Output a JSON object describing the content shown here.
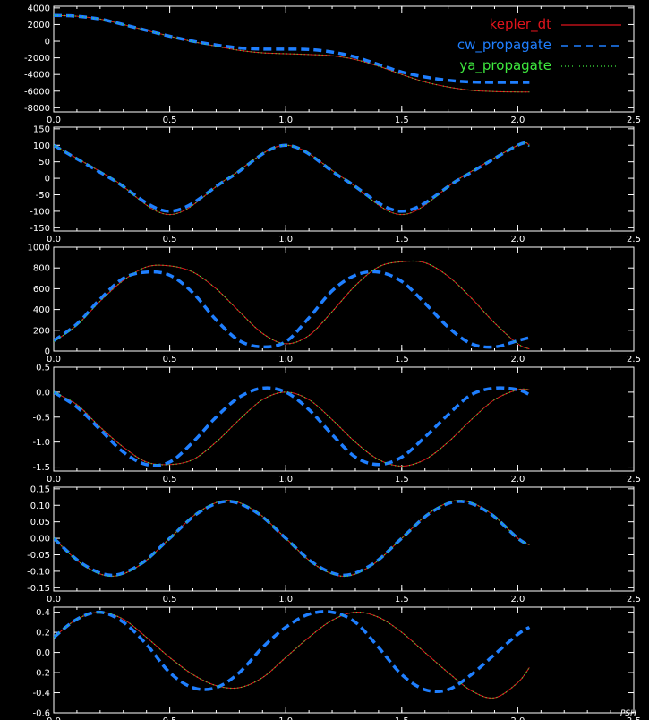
{
  "colors": {
    "background": "#000000",
    "axes": "#ffffff",
    "kepler_dt": "#e0141c",
    "cw_propagate": "#1f7fff",
    "ya_propagate": "#3ee83e"
  },
  "watermark": "PSH",
  "chart_data": [
    {
      "type": "line",
      "xlim": [
        0.0,
        2.5
      ],
      "ylim": [
        -8500,
        4200
      ],
      "x_ticks": [
        "0.0",
        "0.5",
        "1.0",
        "1.5",
        "2.0",
        "2.5"
      ],
      "y_ticks": [
        "4000",
        "2000",
        "0",
        "-2000",
        "-4000",
        "-6000",
        "-8000"
      ],
      "grid": false,
      "legend_position": "top-right",
      "legend": [
        {
          "name": "kepler_dt",
          "style": "solid"
        },
        {
          "name": "cw_propagate",
          "style": "dashed"
        },
        {
          "name": "ya_propagate",
          "style": "dotted"
        }
      ],
      "series": [
        {
          "name": "kepler_dt",
          "x": [
            0,
            0.1,
            0.2,
            0.3,
            0.4,
            0.5,
            0.6,
            0.7,
            0.8,
            0.9,
            1.0,
            1.1,
            1.2,
            1.3,
            1.4,
            1.5,
            1.6,
            1.7,
            1.8,
            1.9,
            2.0,
            2.05
          ],
          "y": [
            3100,
            3000,
            2650,
            2000,
            1300,
            600,
            -50,
            -600,
            -1100,
            -1400,
            -1500,
            -1600,
            -1750,
            -2200,
            -3000,
            -4000,
            -4900,
            -5500,
            -5900,
            -6050,
            -6100,
            -6100
          ]
        },
        {
          "name": "cw_propagate",
          "x": [
            0,
            0.1,
            0.2,
            0.3,
            0.4,
            0.5,
            0.6,
            0.7,
            0.8,
            0.9,
            1.0,
            1.1,
            1.2,
            1.3,
            1.4,
            1.5,
            1.6,
            1.7,
            1.8,
            1.9,
            2.0,
            2.05
          ],
          "y": [
            3100,
            3000,
            2650,
            2000,
            1300,
            600,
            0,
            -450,
            -800,
            -950,
            -950,
            -1000,
            -1300,
            -1900,
            -2800,
            -3700,
            -4300,
            -4700,
            -4900,
            -4950,
            -4950,
            -4950
          ]
        },
        {
          "name": "ya_propagate",
          "x": [
            0,
            0.1,
            0.2,
            0.3,
            0.4,
            0.5,
            0.6,
            0.7,
            0.8,
            0.9,
            1.0,
            1.1,
            1.2,
            1.3,
            1.4,
            1.5,
            1.6,
            1.7,
            1.8,
            1.9,
            2.0,
            2.05
          ],
          "y": [
            3100,
            3000,
            2650,
            2000,
            1300,
            600,
            -50,
            -600,
            -1100,
            -1400,
            -1500,
            -1600,
            -1750,
            -2200,
            -3000,
            -4000,
            -4900,
            -5500,
            -5900,
            -6050,
            -6100,
            -6100
          ]
        }
      ]
    },
    {
      "type": "line",
      "xlim": [
        0.0,
        2.5
      ],
      "ylim": [
        -160,
        155
      ],
      "x_ticks": [
        "0.0",
        "0.5",
        "1.0",
        "1.5",
        "2.0",
        "2.5"
      ],
      "y_ticks": [
        "150",
        "100",
        "50",
        "0",
        "-50",
        "-100",
        "-150"
      ],
      "grid": false,
      "series": [
        {
          "name": "kepler_dt",
          "x": [
            0,
            0.25,
            0.5,
            0.75,
            1.0,
            1.25,
            1.5,
            1.75,
            2.0,
            2.05
          ],
          "y": [
            100,
            0,
            -110,
            0,
            100,
            0,
            -110,
            0,
            100,
            100
          ]
        },
        {
          "name": "cw_propagate",
          "x": [
            0,
            0.25,
            0.5,
            0.75,
            1.0,
            1.25,
            1.5,
            1.75,
            2.0,
            2.05
          ],
          "y": [
            100,
            -2,
            -100,
            -2,
            100,
            -2,
            -100,
            -2,
            100,
            100
          ]
        },
        {
          "name": "ya_propagate",
          "x": [
            0,
            0.25,
            0.5,
            0.75,
            1.0,
            1.25,
            1.5,
            1.75,
            2.0,
            2.05
          ],
          "y": [
            100,
            0,
            -110,
            0,
            100,
            0,
            -110,
            0,
            100,
            100
          ]
        }
      ]
    },
    {
      "type": "line",
      "xlim": [
        0.0,
        2.5
      ],
      "ylim": [
        0,
        1000
      ],
      "x_ticks": [
        "0.0",
        "0.5",
        "1.0",
        "1.5",
        "2.0",
        "2.5"
      ],
      "y_ticks": [
        "1000",
        "800",
        "600",
        "400",
        "200",
        "0"
      ],
      "grid": false,
      "series": [
        {
          "name": "kepler_dt",
          "x": [
            0,
            0.1,
            0.2,
            0.3,
            0.4,
            0.5,
            0.6,
            0.7,
            0.8,
            0.9,
            1.0,
            1.1,
            1.2,
            1.3,
            1.4,
            1.5,
            1.6,
            1.7,
            1.8,
            1.9,
            2.0,
            2.05
          ],
          "y": [
            90,
            250,
            480,
            680,
            810,
            820,
            760,
            600,
            380,
            170,
            70,
            150,
            380,
            630,
            810,
            860,
            850,
            720,
            510,
            270,
            70,
            20
          ]
        },
        {
          "name": "cw_propagate",
          "x": [
            0,
            0.1,
            0.2,
            0.3,
            0.4,
            0.5,
            0.6,
            0.7,
            0.8,
            0.9,
            1.0,
            1.1,
            1.2,
            1.3,
            1.4,
            1.5,
            1.6,
            1.7,
            1.8,
            1.9,
            2.0,
            2.05
          ],
          "y": [
            100,
            260,
            500,
            700,
            760,
            730,
            560,
            300,
            100,
            40,
            90,
            320,
            580,
            730,
            760,
            670,
            460,
            230,
            70,
            40,
            100,
            130
          ]
        },
        {
          "name": "ya_propagate",
          "x": [
            0,
            0.1,
            0.2,
            0.3,
            0.4,
            0.5,
            0.6,
            0.7,
            0.8,
            0.9,
            1.0,
            1.1,
            1.2,
            1.3,
            1.4,
            1.5,
            1.6,
            1.7,
            1.8,
            1.9,
            2.0,
            2.05
          ],
          "y": [
            90,
            250,
            480,
            680,
            810,
            820,
            760,
            600,
            380,
            170,
            70,
            150,
            380,
            630,
            810,
            860,
            850,
            720,
            510,
            270,
            70,
            20
          ]
        }
      ]
    },
    {
      "type": "line",
      "xlim": [
        0.0,
        2.5
      ],
      "ylim": [
        -1.58,
        0.5
      ],
      "x_ticks": [
        "0.0",
        "0.5",
        "1.0",
        "1.5",
        "2.0",
        "2.5"
      ],
      "y_ticks": [
        "0.5",
        "0.0",
        "-0.5",
        "-1.0",
        "-1.5"
      ],
      "grid": false,
      "series": [
        {
          "name": "kepler_dt",
          "x": [
            0,
            0.1,
            0.2,
            0.3,
            0.4,
            0.5,
            0.6,
            0.7,
            0.8,
            0.9,
            1.0,
            1.1,
            1.2,
            1.3,
            1.4,
            1.5,
            1.6,
            1.7,
            1.8,
            1.9,
            2.0,
            2.05
          ],
          "y": [
            0.0,
            -0.25,
            -0.7,
            -1.1,
            -1.4,
            -1.45,
            -1.35,
            -1.0,
            -0.55,
            -0.15,
            0.0,
            -0.15,
            -0.55,
            -1.0,
            -1.35,
            -1.48,
            -1.35,
            -1.0,
            -0.55,
            -0.15,
            0.05,
            0.05
          ]
        },
        {
          "name": "cw_propagate",
          "x": [
            0,
            0.1,
            0.2,
            0.3,
            0.4,
            0.5,
            0.6,
            0.7,
            0.8,
            0.9,
            1.0,
            1.1,
            1.2,
            1.3,
            1.4,
            1.5,
            1.6,
            1.7,
            1.8,
            1.9,
            2.0,
            2.05
          ],
          "y": [
            0.0,
            -0.3,
            -0.75,
            -1.2,
            -1.45,
            -1.4,
            -1.0,
            -0.5,
            -0.1,
            0.08,
            0.0,
            -0.35,
            -0.85,
            -1.3,
            -1.45,
            -1.3,
            -0.9,
            -0.45,
            -0.05,
            0.08,
            0.05,
            -0.05
          ]
        },
        {
          "name": "ya_propagate",
          "x": [
            0,
            0.1,
            0.2,
            0.3,
            0.4,
            0.5,
            0.6,
            0.7,
            0.8,
            0.9,
            1.0,
            1.1,
            1.2,
            1.3,
            1.4,
            1.5,
            1.6,
            1.7,
            1.8,
            1.9,
            2.0,
            2.05
          ],
          "y": [
            0.0,
            -0.25,
            -0.7,
            -1.1,
            -1.4,
            -1.45,
            -1.35,
            -1.0,
            -0.55,
            -0.15,
            0.0,
            -0.15,
            -0.55,
            -1.0,
            -1.35,
            -1.48,
            -1.35,
            -1.0,
            -0.55,
            -0.15,
            0.05,
            0.05
          ]
        }
      ]
    },
    {
      "type": "line",
      "xlim": [
        0.0,
        2.5
      ],
      "ylim": [
        -0.16,
        0.155
      ],
      "x_ticks": [
        "0.0",
        "0.5",
        "1.0",
        "1.5",
        "2.0",
        "2.5"
      ],
      "y_ticks": [
        "0.15",
        "0.10",
        "0.05",
        "0.00",
        "-0.05",
        "-0.10",
        "-0.15"
      ],
      "grid": false,
      "series": [
        {
          "name": "kepler_dt",
          "x": [
            0,
            0.125,
            0.25,
            0.375,
            0.5,
            0.625,
            0.75,
            0.875,
            1.0,
            1.125,
            1.25,
            1.375,
            1.5,
            1.625,
            1.75,
            1.875,
            2.0,
            2.05
          ],
          "y": [
            0.0,
            -0.08,
            -0.115,
            -0.08,
            0.0,
            0.08,
            0.115,
            0.08,
            0.0,
            -0.08,
            -0.115,
            -0.08,
            0.0,
            0.08,
            0.115,
            0.08,
            0.0,
            -0.02
          ]
        },
        {
          "name": "cw_propagate",
          "x": [
            0,
            0.125,
            0.25,
            0.375,
            0.5,
            0.625,
            0.75,
            0.875,
            1.0,
            1.125,
            1.25,
            1.375,
            1.5,
            1.625,
            1.75,
            1.875,
            2.0,
            2.05
          ],
          "y": [
            0.0,
            -0.078,
            -0.112,
            -0.078,
            0.0,
            0.078,
            0.112,
            0.078,
            0.0,
            -0.078,
            -0.112,
            -0.078,
            0.0,
            0.078,
            0.112,
            0.078,
            0.0,
            -0.02
          ]
        },
        {
          "name": "ya_propagate",
          "x": [
            0,
            0.125,
            0.25,
            0.375,
            0.5,
            0.625,
            0.75,
            0.875,
            1.0,
            1.125,
            1.25,
            1.375,
            1.5,
            1.625,
            1.75,
            1.875,
            2.0,
            2.05
          ],
          "y": [
            0.0,
            -0.08,
            -0.115,
            -0.08,
            0.0,
            0.08,
            0.115,
            0.08,
            0.0,
            -0.08,
            -0.115,
            -0.08,
            0.0,
            0.08,
            0.115,
            0.08,
            0.0,
            -0.02
          ]
        }
      ]
    },
    {
      "type": "line",
      "xlim": [
        0.0,
        2.5
      ],
      "ylim": [
        -0.6,
        0.45
      ],
      "x_ticks": [
        "0.0",
        "0.5",
        "1.0",
        "1.5",
        "2.0",
        "2.5"
      ],
      "y_ticks": [
        "0.4",
        "0.2",
        "0.0",
        "-0.2",
        "-0.4",
        "-0.6"
      ],
      "grid": false,
      "series": [
        {
          "name": "kepler_dt",
          "x": [
            0,
            0.1,
            0.2,
            0.3,
            0.4,
            0.5,
            0.6,
            0.7,
            0.8,
            0.9,
            1.0,
            1.1,
            1.2,
            1.3,
            1.4,
            1.5,
            1.6,
            1.7,
            1.8,
            1.9,
            2.0,
            2.05
          ],
          "y": [
            0.15,
            0.33,
            0.4,
            0.33,
            0.15,
            -0.05,
            -0.22,
            -0.33,
            -0.35,
            -0.25,
            -0.05,
            0.15,
            0.32,
            0.4,
            0.35,
            0.2,
            0.0,
            -0.2,
            -0.38,
            -0.45,
            -0.3,
            -0.15
          ]
        },
        {
          "name": "cw_propagate",
          "x": [
            0,
            0.1,
            0.2,
            0.3,
            0.4,
            0.5,
            0.6,
            0.7,
            0.8,
            0.9,
            1.0,
            1.1,
            1.2,
            1.3,
            1.4,
            1.5,
            1.6,
            1.7,
            1.8,
            1.9,
            2.0,
            2.05
          ],
          "y": [
            0.15,
            0.33,
            0.4,
            0.3,
            0.08,
            -0.2,
            -0.35,
            -0.35,
            -0.2,
            0.05,
            0.25,
            0.38,
            0.4,
            0.3,
            0.05,
            -0.22,
            -0.37,
            -0.37,
            -0.22,
            -0.02,
            0.18,
            0.25
          ]
        },
        {
          "name": "ya_propagate",
          "x": [
            0,
            0.1,
            0.2,
            0.3,
            0.4,
            0.5,
            0.6,
            0.7,
            0.8,
            0.9,
            1.0,
            1.1,
            1.2,
            1.3,
            1.4,
            1.5,
            1.6,
            1.7,
            1.8,
            1.9,
            2.0,
            2.05
          ],
          "y": [
            0.15,
            0.33,
            0.4,
            0.33,
            0.15,
            -0.05,
            -0.22,
            -0.33,
            -0.35,
            -0.25,
            -0.05,
            0.15,
            0.32,
            0.4,
            0.35,
            0.2,
            0.0,
            -0.2,
            -0.38,
            -0.45,
            -0.3,
            -0.15
          ]
        }
      ]
    }
  ]
}
